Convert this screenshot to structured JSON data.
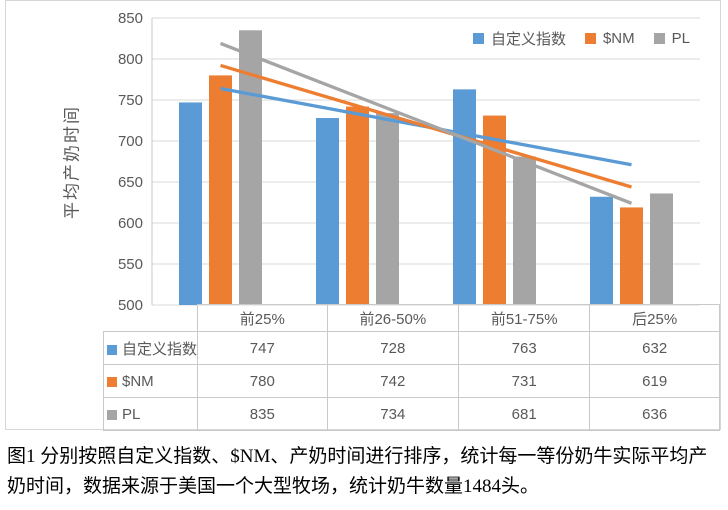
{
  "figure": {
    "caption": "图1 分别按照自定义指数、$NM、产奶时间进行排序，统计每一等份奶牛实际平均产奶时间，数据来源于美国一个大型牧场，统计奶牛数量1484头。"
  },
  "chart_data": {
    "type": "bar",
    "title": "",
    "xlabel": "",
    "ylabel": "平均产奶时间",
    "categories": [
      "前25%",
      "前26-50%",
      "前51-75%",
      "后25%"
    ],
    "series": [
      {
        "name": "自定义指数",
        "color": "#5B9BD5",
        "values": [
          747,
          728,
          763,
          632
        ],
        "trendline": true
      },
      {
        "name": "$NM",
        "color": "#ED7D31",
        "values": [
          780,
          742,
          731,
          619
        ],
        "trendline": true
      },
      {
        "name": "PL",
        "color": "#A5A5A5",
        "values": [
          835,
          734,
          681,
          636
        ],
        "trendline": true
      }
    ],
    "ylim": [
      500,
      850
    ],
    "ytick_step": 50,
    "yticks": [
      500,
      550,
      600,
      650,
      700,
      750,
      800,
      850
    ],
    "grid": true,
    "legend_position": "top-right",
    "legend": [
      "自定义指数",
      "$NM",
      "PL"
    ],
    "data_table_shown": true,
    "colors": {
      "grid": "#d9d9d9",
      "axis": "#c9c9c9",
      "text": "#595959"
    }
  }
}
